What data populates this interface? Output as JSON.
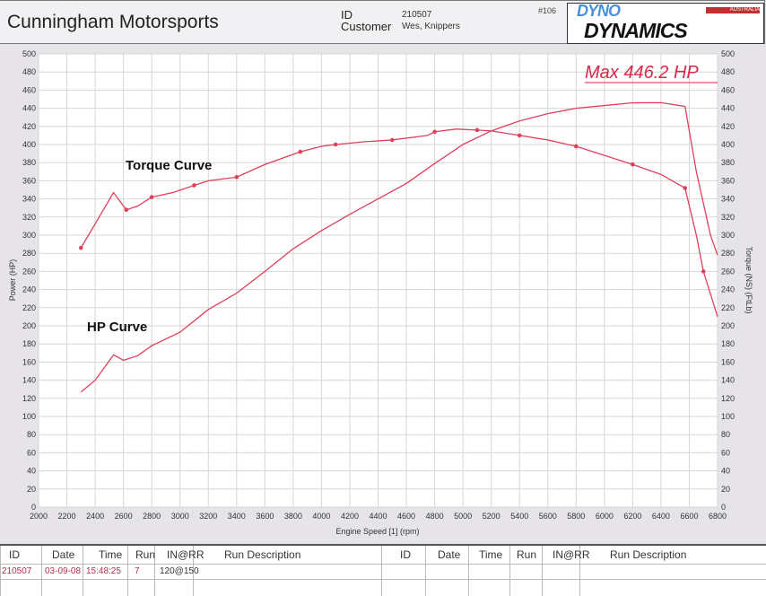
{
  "header": {
    "company": "Cunningham Motorsports",
    "id_label": "ID",
    "id_value": "210507",
    "customer_label": "Customer",
    "customer_value": "Wes, Knippers",
    "run_number": "#106",
    "logo_top": "DYNO",
    "logo_bottom": "DYNAMICS",
    "logo_sub": "AUSTRALIA"
  },
  "chart_data": {
    "type": "line",
    "annotation": "Max 446.2 HP",
    "xlabel": "Engine Speed [1] (rpm)",
    "ylabel": "Power (HP)",
    "y2label": "Torque (NS) (FtLb)",
    "xlim": [
      2000,
      6800
    ],
    "ylim": [
      0,
      500
    ],
    "y2lim": [
      0,
      500
    ],
    "grid": true,
    "x_ticks": [
      2000,
      2200,
      2400,
      2600,
      2800,
      3000,
      3200,
      3400,
      3600,
      3800,
      4000,
      4200,
      4400,
      4600,
      4800,
      5000,
      5200,
      5400,
      5600,
      5800,
      6000,
      6200,
      6400,
      6600,
      6800
    ],
    "y_ticks": [
      0,
      20,
      40,
      60,
      80,
      100,
      120,
      140,
      160,
      180,
      200,
      220,
      240,
      260,
      280,
      300,
      320,
      340,
      360,
      380,
      400,
      420,
      440,
      460,
      480,
      500
    ],
    "color": "#e0405a",
    "series": [
      {
        "name": "Torque Curve",
        "axis": "right",
        "markers": true,
        "x": [
          2300,
          2530,
          2620,
          2700,
          2800,
          2950,
          3100,
          3200,
          3400,
          3600,
          3850,
          4000,
          4100,
          4300,
          4500,
          4750,
          4800,
          4950,
          5100,
          5200,
          5400,
          5600,
          5800,
          6000,
          6200,
          6400,
          6570,
          6650,
          6700,
          6800
        ],
        "y": [
          286,
          347,
          328,
          332,
          342,
          347,
          355,
          360,
          364,
          378,
          392,
          398,
          400,
          403,
          405,
          410,
          414,
          417,
          416,
          415,
          410,
          405,
          398,
          388,
          378,
          367,
          352,
          300,
          260,
          210
        ]
      },
      {
        "name": "HP Curve",
        "axis": "left",
        "markers": false,
        "x": [
          2300,
          2400,
          2530,
          2600,
          2700,
          2800,
          3000,
          3200,
          3400,
          3600,
          3800,
          4000,
          4200,
          4400,
          4600,
          4800,
          5000,
          5200,
          5400,
          5600,
          5800,
          6000,
          6200,
          6400,
          6570,
          6650,
          6750,
          6800
        ],
        "y": [
          127,
          140,
          168,
          162,
          167,
          178,
          193,
          218,
          236,
          260,
          285,
          305,
          323,
          340,
          357,
          379,
          400,
          415,
          426,
          434,
          440,
          443,
          446,
          446.2,
          442,
          370,
          300,
          278
        ]
      }
    ]
  },
  "table": {
    "headers": [
      "ID",
      "Date",
      "Time",
      "Run",
      "IN@RR",
      "Run Description",
      "ID",
      "Date",
      "Time",
      "Run",
      "IN@RR",
      "Run Description"
    ],
    "rows": [
      [
        "210507",
        "03-09-08",
        "15:48:25",
        "7",
        "120@150",
        ""
      ]
    ]
  }
}
